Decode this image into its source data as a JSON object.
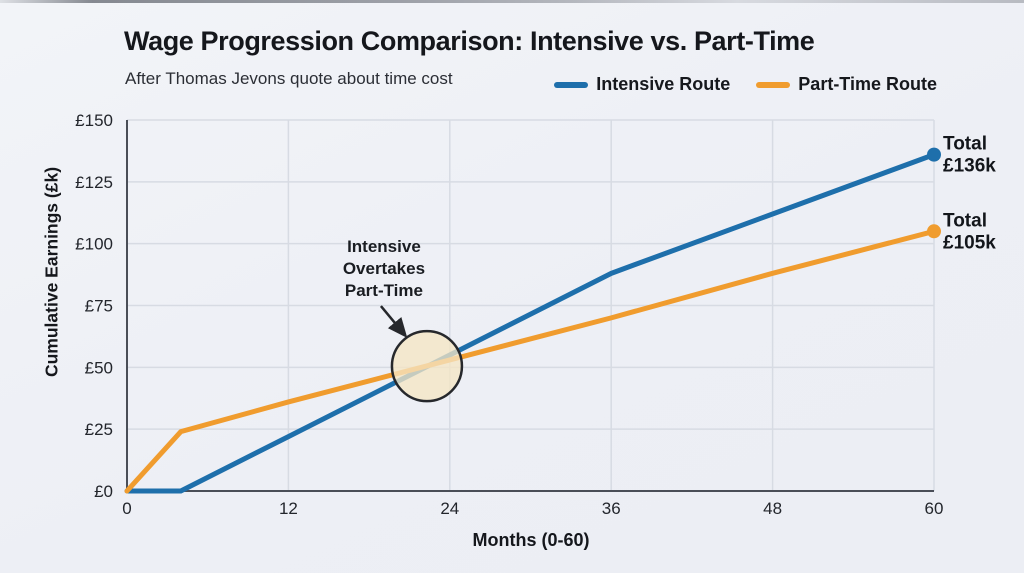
{
  "chart_data": {
    "type": "line",
    "title": "Wage Progression Comparison: Intensive vs. Part-Time",
    "subtitle": "After Thomas Jevons quote about time cost",
    "xlabel": "Months (0-60)",
    "ylabel": "Cumulative Earnings (£k)",
    "xlim": [
      0,
      60
    ],
    "ylim": [
      0,
      150
    ],
    "grid": true,
    "legend_position": "top-right",
    "x": [
      0,
      4,
      12,
      24,
      36,
      48,
      60
    ],
    "series": [
      {
        "name": "Intensive Route",
        "color": "#1e6fab",
        "values": [
          0,
          0,
          22,
          55,
          88,
          112,
          136
        ],
        "end_label_lines": [
          "Total",
          "£136k"
        ]
      },
      {
        "name": "Part-Time Route",
        "color": "#f09c2e",
        "values": [
          0,
          24,
          36,
          53,
          70,
          88,
          105
        ],
        "end_label_lines": [
          "Total",
          "£105k"
        ]
      }
    ],
    "xticks": [
      {
        "v": 0,
        "label": "0"
      },
      {
        "v": 12,
        "label": "12"
      },
      {
        "v": 24,
        "label": "24"
      },
      {
        "v": 36,
        "label": "36"
      },
      {
        "v": 48,
        "label": "48"
      },
      {
        "v": 60,
        "label": "60"
      }
    ],
    "yticks": [
      {
        "v": 0,
        "label": "£0"
      },
      {
        "v": 25,
        "label": "£25"
      },
      {
        "v": 50,
        "label": "£50"
      },
      {
        "v": 75,
        "label": "£75"
      },
      {
        "v": 100,
        "label": "£100"
      },
      {
        "v": 125,
        "label": "£125"
      },
      {
        "v": 150,
        "label": "£150"
      }
    ],
    "annotation": {
      "lines": [
        "Intensive",
        "Overtakes",
        "Part-Time"
      ],
      "target": {
        "x": 22.3,
        "y": 50.5
      },
      "circle_fill": "#f5e5c4",
      "circle_stroke": "#26282c"
    },
    "style": {
      "grid_color": "#d7dbe3",
      "axis_color": "#4a4e57",
      "tick_text_color": "#23262c",
      "annotation_text_color": "#1a1d22",
      "end_label_color": "#13161b"
    }
  }
}
